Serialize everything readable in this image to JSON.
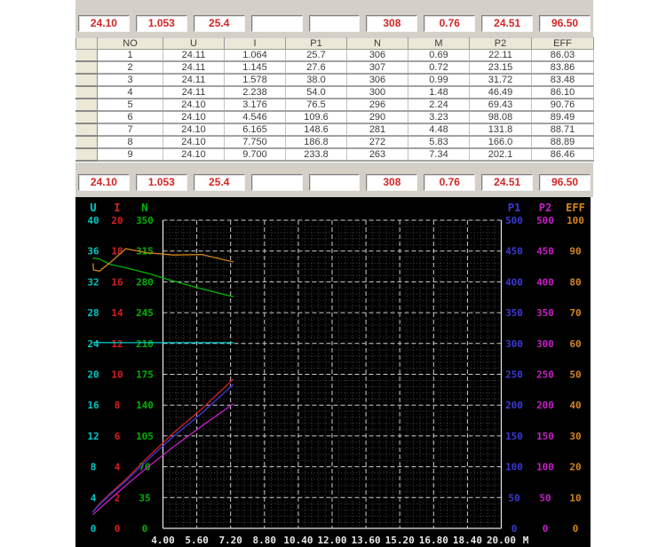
{
  "top_panel": {
    "values": [
      "24.10",
      "1.053",
      "25.4",
      "",
      "",
      "308",
      "0.76",
      "24.51",
      "96.50"
    ],
    "text_color": "#d42525"
  },
  "mid_panel": {
    "values": [
      "24.10",
      "1.053",
      "25.4",
      "",
      "",
      "308",
      "0.76",
      "24.51",
      "96.50"
    ],
    "text_color": "#d42525"
  },
  "table": {
    "headers": [
      "NO",
      "U",
      "I",
      "P1",
      "N",
      "M",
      "P2",
      "EFF"
    ],
    "rows": [
      [
        "1",
        "24.11",
        "1.064",
        "25.7",
        "306",
        "0.69",
        "22.11",
        "86.03"
      ],
      [
        "2",
        "24.11",
        "1.145",
        "27.6",
        "307",
        "0.72",
        "23.15",
        "83.86"
      ],
      [
        "3",
        "24.11",
        "1.578",
        "38.0",
        "306",
        "0.99",
        "31.72",
        "83.48"
      ],
      [
        "4",
        "24.11",
        "2.238",
        "54.0",
        "300",
        "1.48",
        "46.49",
        "86.10"
      ],
      [
        "5",
        "24.10",
        "3.176",
        "76.5",
        "296",
        "2.24",
        "69.43",
        "90.76"
      ],
      [
        "6",
        "24.10",
        "4.546",
        "109.6",
        "290",
        "3.23",
        "98.08",
        "89.49"
      ],
      [
        "7",
        "24.10",
        "6.165",
        "148.6",
        "281",
        "4.48",
        "131.8",
        "88.71"
      ],
      [
        "8",
        "24.10",
        "7.750",
        "186.8",
        "272",
        "5.83",
        "166.0",
        "88.89"
      ],
      [
        "9",
        "24.10",
        "9.700",
        "233.8",
        "263",
        "7.34",
        "202.1",
        "86.46"
      ]
    ]
  },
  "chart_data": {
    "type": "line",
    "x_label": "M",
    "x_range": [
      4.0,
      20.0
    ],
    "x_ticks": [
      "4.00",
      "5.60",
      "7.20",
      "8.80",
      "10.40",
      "12.00",
      "13.60",
      "15.20",
      "16.80",
      "18.40",
      "20.00"
    ],
    "x": [
      0.69,
      0.72,
      0.99,
      1.48,
      2.24,
      3.23,
      4.48,
      5.83,
      7.34
    ],
    "axes": [
      {
        "name": "U",
        "side": "left",
        "min": 0,
        "max": 40,
        "color": "#00c6c6"
      },
      {
        "name": "I",
        "side": "left",
        "min": 0,
        "max": 20,
        "color": "#d42020"
      },
      {
        "name": "N",
        "side": "left",
        "min": 0,
        "max": 350,
        "color": "#00b400"
      },
      {
        "name": "P1",
        "side": "right",
        "min": 0,
        "max": 500,
        "color": "#3a3ad8"
      },
      {
        "name": "P2",
        "side": "right",
        "min": 0,
        "max": 500,
        "color": "#c51fc5"
      },
      {
        "name": "EFF",
        "side": "right",
        "min": 0,
        "max": 100,
        "color": "#d5851e"
      }
    ],
    "series": [
      {
        "name": "U",
        "axis": "U",
        "values": [
          24.11,
          24.11,
          24.11,
          24.11,
          24.1,
          24.1,
          24.1,
          24.1,
          24.1
        ]
      },
      {
        "name": "I",
        "axis": "I",
        "values": [
          1.064,
          1.145,
          1.578,
          2.238,
          3.176,
          4.546,
          6.165,
          7.75,
          9.7
        ]
      },
      {
        "name": "N",
        "axis": "N",
        "values": [
          306,
          307,
          306,
          300,
          296,
          290,
          281,
          272,
          263
        ]
      },
      {
        "name": "P1",
        "axis": "P1",
        "values": [
          25.7,
          27.6,
          38.0,
          54.0,
          76.5,
          109.6,
          148.6,
          186.8,
          233.8
        ]
      },
      {
        "name": "P2",
        "axis": "P2",
        "values": [
          22.11,
          23.15,
          31.72,
          46.49,
          69.43,
          98.08,
          131.8,
          166.0,
          202.1
        ]
      },
      {
        "name": "EFF",
        "axis": "EFF",
        "values": [
          86.03,
          83.86,
          83.48,
          86.1,
          90.76,
          89.49,
          88.71,
          88.89,
          86.46
        ]
      }
    ],
    "grid": {
      "on": true,
      "major_color": "#cdcdcd",
      "minor_color": "#474747",
      "background": "#000000",
      "frame_color": "#e8e8e8",
      "x_label_color": "#e8e8e8"
    }
  }
}
